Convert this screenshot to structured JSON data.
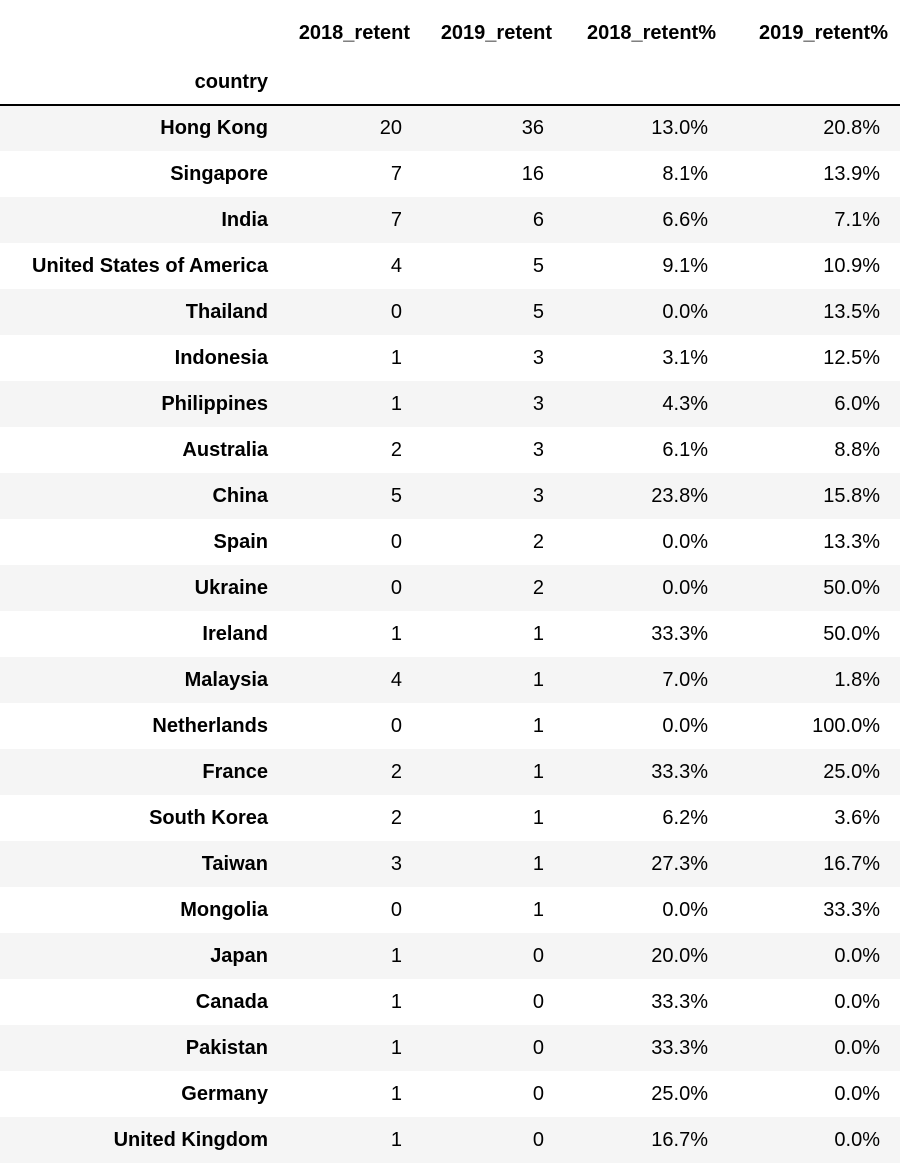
{
  "table": {
    "index_name": "country",
    "columns": [
      "2018_retent",
      "2019_retent",
      "2018_retent%",
      "2019_retent%"
    ],
    "rows": [
      {
        "country": "Hong Kong",
        "values": [
          "20",
          "36",
          "13.0%",
          "20.8%"
        ]
      },
      {
        "country": "Singapore",
        "values": [
          "7",
          "16",
          "8.1%",
          "13.9%"
        ]
      },
      {
        "country": "India",
        "values": [
          "7",
          "6",
          "6.6%",
          "7.1%"
        ]
      },
      {
        "country": "United States of America",
        "values": [
          "4",
          "5",
          "9.1%",
          "10.9%"
        ]
      },
      {
        "country": "Thailand",
        "values": [
          "0",
          "5",
          "0.0%",
          "13.5%"
        ]
      },
      {
        "country": "Indonesia",
        "values": [
          "1",
          "3",
          "3.1%",
          "12.5%"
        ]
      },
      {
        "country": "Philippines",
        "values": [
          "1",
          "3",
          "4.3%",
          "6.0%"
        ]
      },
      {
        "country": "Australia",
        "values": [
          "2",
          "3",
          "6.1%",
          "8.8%"
        ]
      },
      {
        "country": "China",
        "values": [
          "5",
          "3",
          "23.8%",
          "15.8%"
        ]
      },
      {
        "country": "Spain",
        "values": [
          "0",
          "2",
          "0.0%",
          "13.3%"
        ]
      },
      {
        "country": "Ukraine",
        "values": [
          "0",
          "2",
          "0.0%",
          "50.0%"
        ]
      },
      {
        "country": "Ireland",
        "values": [
          "1",
          "1",
          "33.3%",
          "50.0%"
        ]
      },
      {
        "country": "Malaysia",
        "values": [
          "4",
          "1",
          "7.0%",
          "1.8%"
        ]
      },
      {
        "country": "Netherlands",
        "values": [
          "0",
          "1",
          "0.0%",
          "100.0%"
        ]
      },
      {
        "country": "France",
        "values": [
          "2",
          "1",
          "33.3%",
          "25.0%"
        ]
      },
      {
        "country": "South Korea",
        "values": [
          "2",
          "1",
          "6.2%",
          "3.6%"
        ]
      },
      {
        "country": "Taiwan",
        "values": [
          "3",
          "1",
          "27.3%",
          "16.7%"
        ]
      },
      {
        "country": "Mongolia",
        "values": [
          "0",
          "1",
          "0.0%",
          "33.3%"
        ]
      },
      {
        "country": "Japan",
        "values": [
          "1",
          "0",
          "20.0%",
          "0.0%"
        ]
      },
      {
        "country": "Canada",
        "values": [
          "1",
          "0",
          "33.3%",
          "0.0%"
        ]
      },
      {
        "country": "Pakistan",
        "values": [
          "1",
          "0",
          "33.3%",
          "0.0%"
        ]
      },
      {
        "country": "Germany",
        "values": [
          "1",
          "0",
          "25.0%",
          "0.0%"
        ]
      },
      {
        "country": "United Kingdom",
        "values": [
          "1",
          "0",
          "16.7%",
          "0.0%"
        ]
      }
    ]
  }
}
